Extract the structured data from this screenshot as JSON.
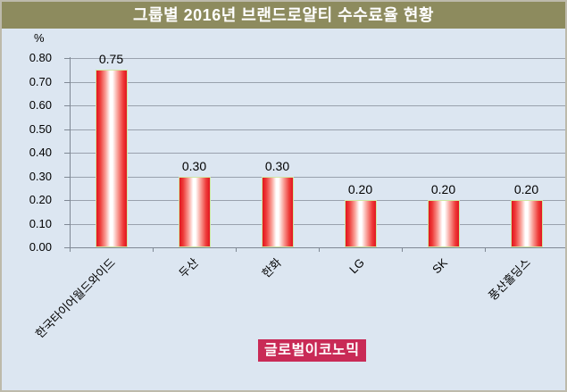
{
  "title": "그룹별 2016년 브랜드로얄티 수수료율 현황",
  "unit_label": "%",
  "chart_data": {
    "type": "bar",
    "title": "그룹별 2016년 브랜드로얄티 수수료율 현황",
    "categories": [
      "한국타이어월드와이드",
      "두산",
      "한화",
      "LG",
      "SK",
      "풍산홀딩스"
    ],
    "values": [
      0.75,
      0.3,
      0.3,
      0.2,
      0.2,
      0.2
    ],
    "data_labels": [
      "0.75",
      "0.30",
      "0.30",
      "0.20",
      "0.20",
      "0.20"
    ],
    "xlabel": "",
    "ylabel": "%",
    "ylim": [
      0,
      0.8
    ],
    "ytick_step": 0.1,
    "ytick_labels": [
      "0.80",
      "0.70",
      "0.60",
      "0.50",
      "0.40",
      "0.30",
      "0.20",
      "0.10",
      "0.00"
    ],
    "grid": true,
    "legend": false,
    "bar_color": "#e2151f",
    "bar_border_color": "#cfe6a2",
    "background_color": "#dce6f1",
    "title_bg_color": "#8d8b5e",
    "title_text_color": "#ffffff"
  },
  "watermark": {
    "text": "글로벌이코노믹",
    "bg_color": "#c92a56",
    "text_color": "#ffffff"
  }
}
